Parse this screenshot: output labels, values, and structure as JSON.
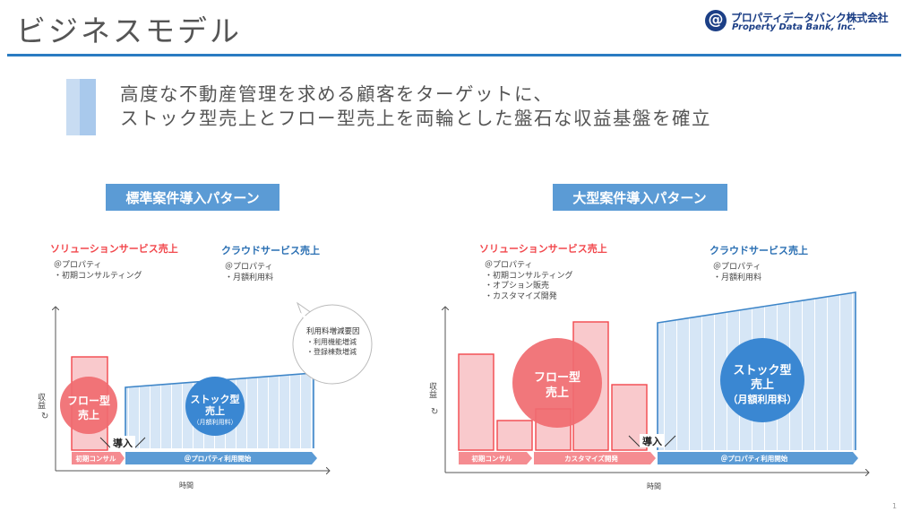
{
  "header": {
    "title": "ビジネスモデル",
    "logo_mark": "@",
    "logo_ja": "プロパティデータバンク株式会社",
    "logo_en": "Property Data Bank, Inc."
  },
  "lead": {
    "line1": "高度な不動産管理を求める顧客をターゲットに、",
    "line2": "ストック型売上とフロー型売上を両輪とした盤石な収益基盤を確立"
  },
  "standard": {
    "heading": "標準案件導入パターン",
    "solution": {
      "title": "ソリューションサービス売上",
      "items": [
        "＠プロパティ",
        "・初期コンサルティング"
      ]
    },
    "cloud": {
      "title": "クラウドサービス売上",
      "items": [
        "＠プロパティ",
        "・月額利用料"
      ]
    },
    "callout": {
      "title": "利用料増減要因",
      "items": [
        "・利用機能増減",
        "・登録棟数増減"
      ]
    },
    "ylabel": "収益",
    "xlabel": "時間",
    "flow_label": [
      "フロー型",
      "売上"
    ],
    "stock_label": [
      "ストック型",
      "売上",
      "（月額利用料）"
    ],
    "intro": "導入",
    "arrow_labels": [
      "初期コンサル",
      "＠プロパティ利用開始"
    ]
  },
  "large": {
    "heading": "大型案件導入パターン",
    "solution": {
      "title": "ソリューションサービス売上",
      "items": [
        "＠プロパティ",
        "・初期コンサルティング",
        "・オプション販売",
        "・カスタマイズ開発"
      ]
    },
    "cloud": {
      "title": "クラウドサービス売上",
      "items": [
        "＠プロパティ",
        "・月額利用料"
      ]
    },
    "ylabel": "収益",
    "xlabel": "時間",
    "flow_label": [
      "フロー型",
      "売上"
    ],
    "stock_label": [
      "ストック型",
      "売上",
      "（月額利用料）"
    ],
    "intro": "導入",
    "arrow_labels": [
      "初期コンサル",
      "カスタマイズ開発",
      "＠プロパティ利用開始"
    ]
  },
  "colors": {
    "accent_blue": "#2a7bc2",
    "heading_bg": "#5b9bd5",
    "flow_red": "#f2484d",
    "flow_fill": "#f9c9cc",
    "stock_fill": "#d6e6f6",
    "stock_line": "#3d85c8",
    "circle_blue": "#3a87d2",
    "circle_red": "#f06b70"
  },
  "page_number": "1"
}
